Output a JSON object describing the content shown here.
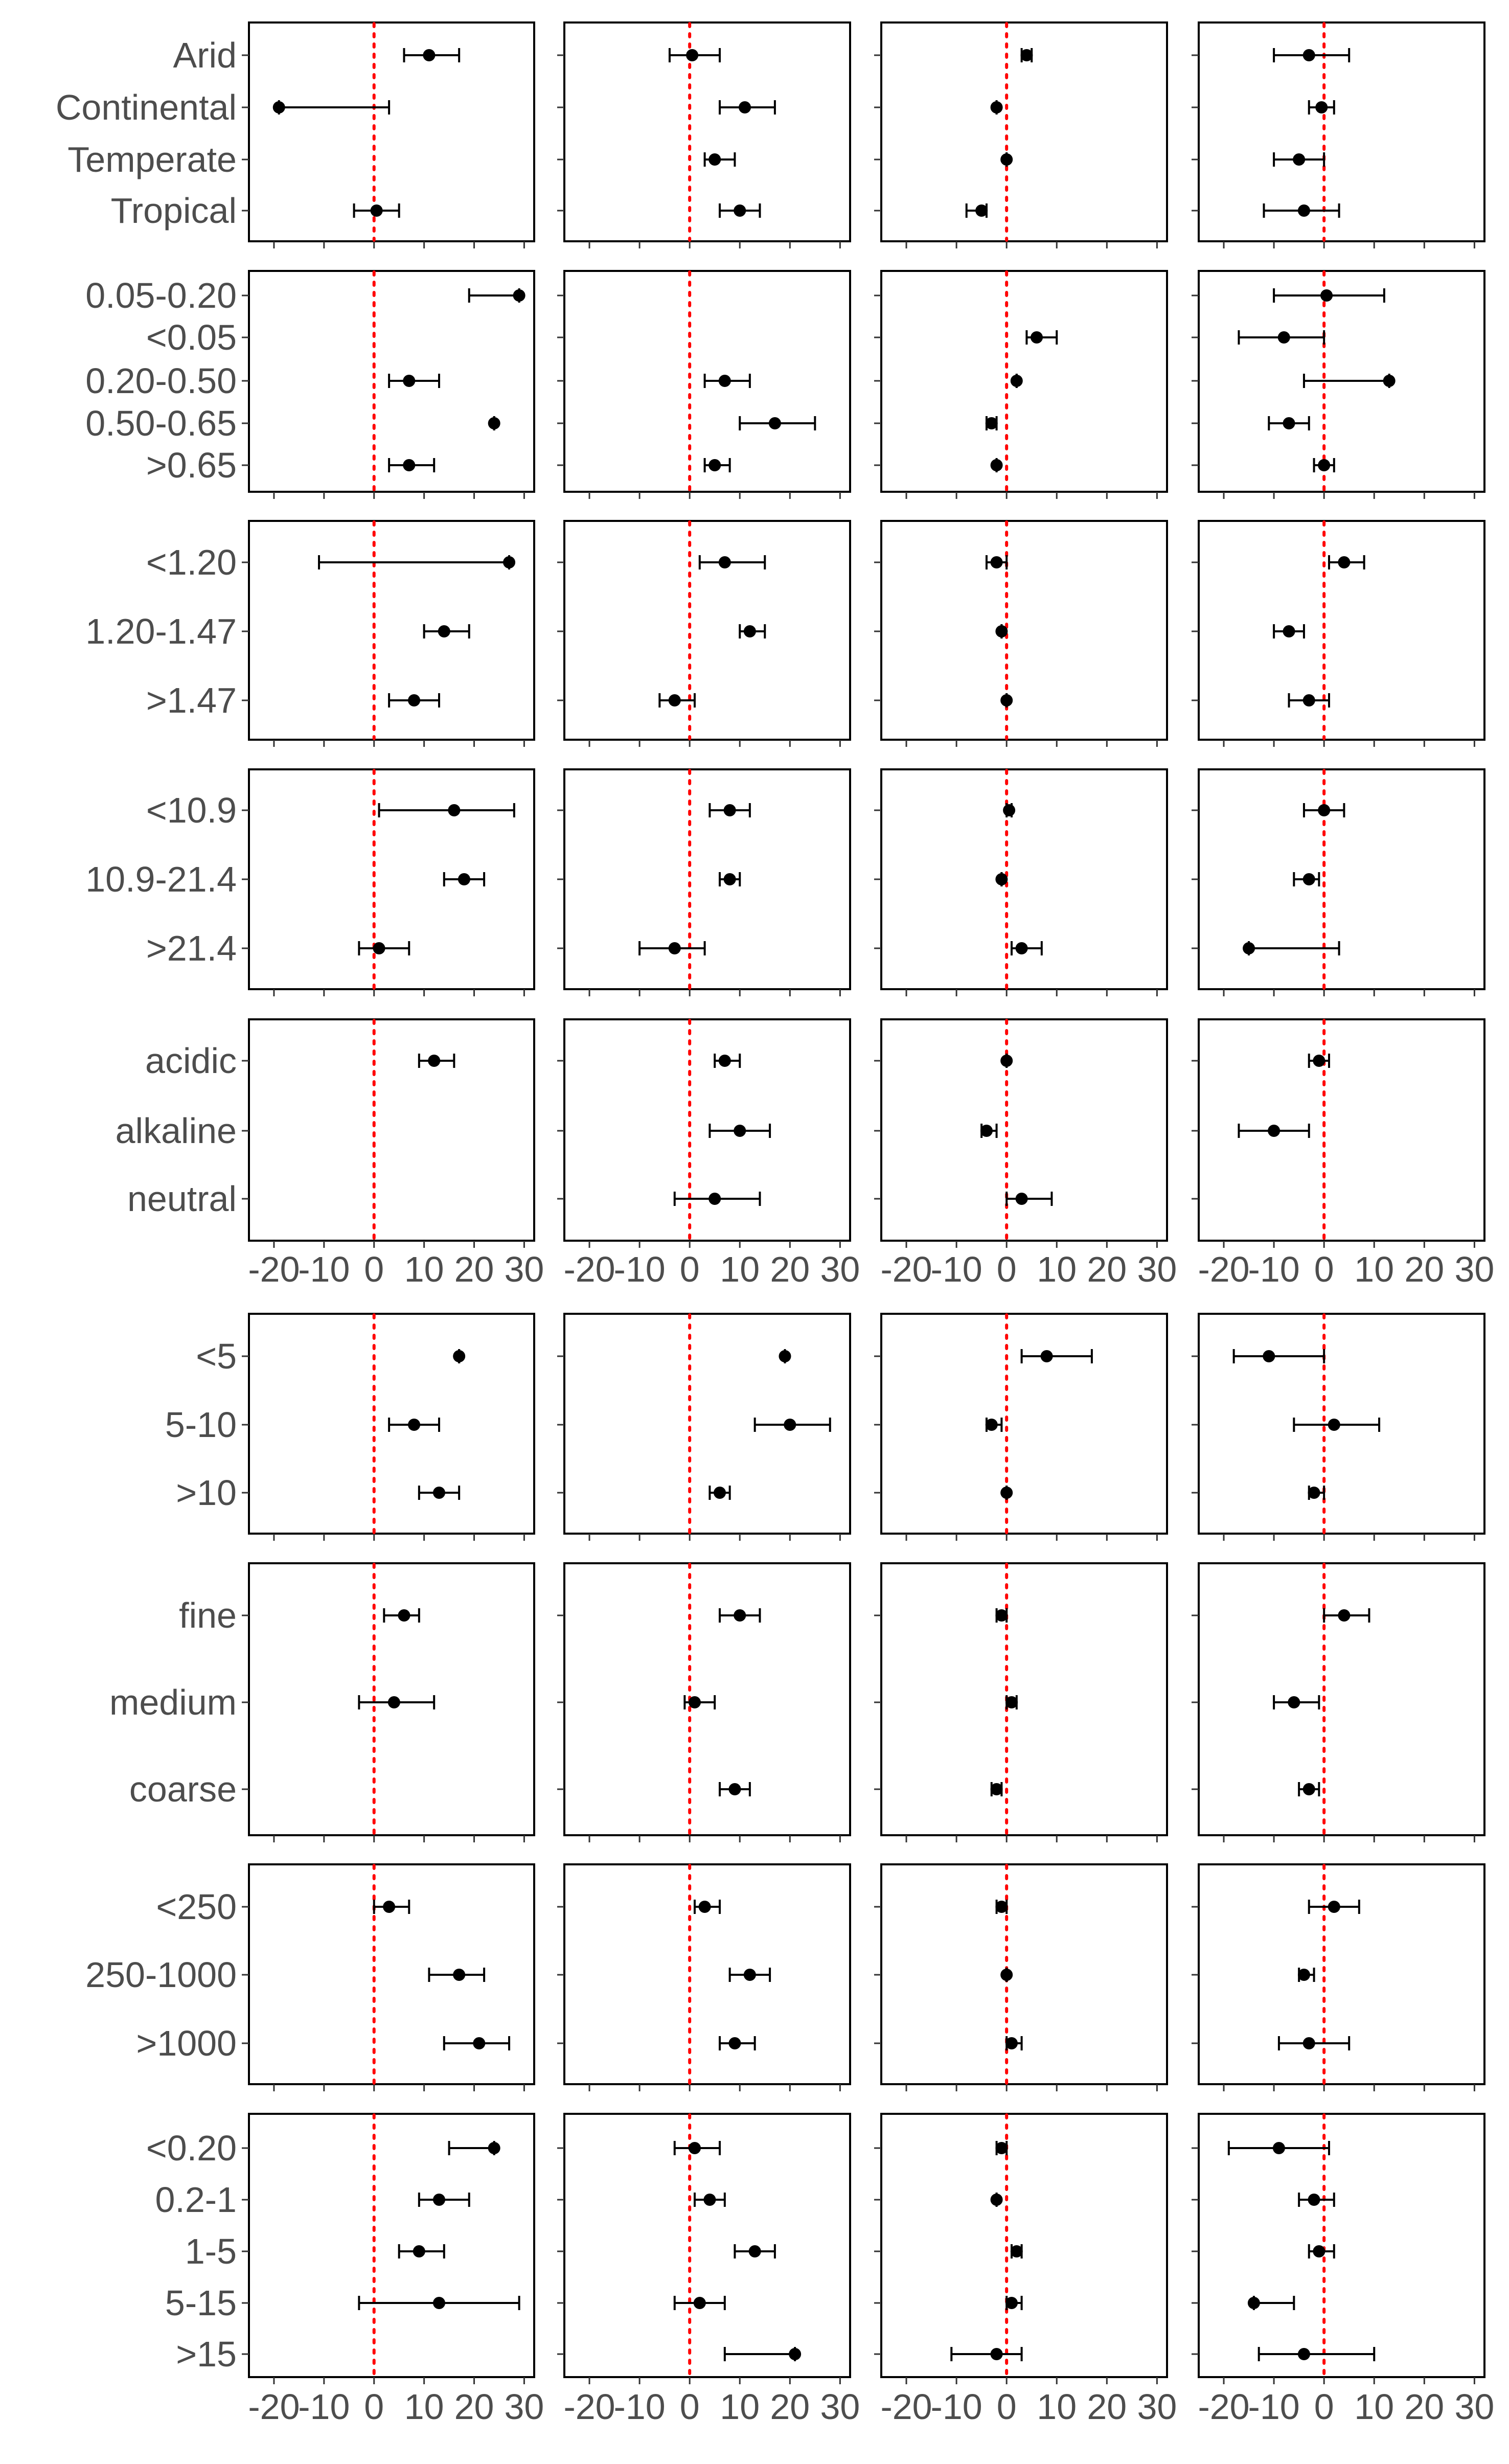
{
  "chart_data": {
    "type": "forest",
    "zero_line": {
      "x": 0,
      "color": "#ff0000",
      "style": "dotted"
    },
    "xlim": [
      -25,
      32
    ],
    "x_tick_labels": [
      "-20",
      "-10",
      "0",
      "10",
      "20",
      "30"
    ],
    "groups": [
      {
        "categories": [
          "Arid",
          "Continental",
          "Temperate",
          "Tropical"
        ],
        "panels": [
          [
            {
              "est": 11,
              "lo": 6,
              "hi": 17
            },
            {
              "est": -19,
              "lo": -19,
              "hi": 3
            },
            null,
            {
              "est": 0.5,
              "lo": -4,
              "hi": 5
            }
          ],
          [
            {
              "est": 0.5,
              "lo": -4,
              "hi": 6
            },
            {
              "est": 11,
              "lo": 6,
              "hi": 17
            },
            {
              "est": 5,
              "lo": 3,
              "hi": 9
            },
            {
              "est": 10,
              "lo": 6,
              "hi": 14
            }
          ],
          [
            {
              "est": 4,
              "lo": 3,
              "hi": 5
            },
            {
              "est": -2,
              "lo": -2,
              "hi": -2
            },
            {
              "est": 0,
              "lo": 0,
              "hi": 0
            },
            {
              "est": -5,
              "lo": -8,
              "hi": -4
            }
          ],
          [
            {
              "est": -3,
              "lo": -10,
              "hi": 5
            },
            {
              "est": -0.5,
              "lo": -3,
              "hi": 2
            },
            {
              "est": -5,
              "lo": -10,
              "hi": 0
            },
            {
              "est": -4,
              "lo": -12,
              "hi": 3
            }
          ]
        ]
      },
      {
        "categories": [
          "0.05-0.20",
          "<0.05",
          "0.20-0.50",
          "0.50-0.65",
          ">0.65"
        ],
        "panels": [
          [
            {
              "est": 29,
              "lo": 19,
              "hi": 29
            },
            null,
            {
              "est": 7,
              "lo": 3,
              "hi": 13
            },
            {
              "est": 24,
              "lo": 24,
              "hi": 24
            },
            {
              "est": 7,
              "lo": 3,
              "hi": 12
            }
          ],
          [
            null,
            null,
            {
              "est": 7,
              "lo": 3,
              "hi": 12
            },
            {
              "est": 17,
              "lo": 10,
              "hi": 25
            },
            {
              "est": 5,
              "lo": 3,
              "hi": 8
            }
          ],
          [
            null,
            {
              "est": 6,
              "lo": 4,
              "hi": 10
            },
            {
              "est": 2,
              "lo": 2,
              "hi": 2
            },
            {
              "est": -3,
              "lo": -4,
              "hi": -2
            },
            {
              "est": -2,
              "lo": -2,
              "hi": -2
            }
          ],
          [
            {
              "est": 0.5,
              "lo": -10,
              "hi": 12
            },
            {
              "est": -8,
              "lo": -17,
              "hi": 0
            },
            {
              "est": 13,
              "lo": -4,
              "hi": 13
            },
            {
              "est": -7,
              "lo": -11,
              "hi": -3
            },
            {
              "est": 0,
              "lo": -2,
              "hi": 2
            }
          ]
        ]
      },
      {
        "categories": [
          "<1.20",
          "1.20-1.47",
          ">1.47"
        ],
        "panels": [
          [
            {
              "est": 27,
              "lo": -11,
              "hi": 27
            },
            {
              "est": 14,
              "lo": 10,
              "hi": 19
            },
            {
              "est": 8,
              "lo": 3,
              "hi": 13
            }
          ],
          [
            {
              "est": 7,
              "lo": 2,
              "hi": 15
            },
            {
              "est": 12,
              "lo": 10,
              "hi": 15
            },
            {
              "est": -3,
              "lo": -6,
              "hi": 1
            }
          ],
          [
            {
              "est": -2,
              "lo": -4,
              "hi": 0
            },
            {
              "est": -1,
              "lo": -1,
              "hi": -1
            },
            {
              "est": 0,
              "lo": 0,
              "hi": 0
            }
          ],
          [
            {
              "est": 4,
              "lo": 1,
              "hi": 8
            },
            {
              "est": -7,
              "lo": -10,
              "hi": -4
            },
            {
              "est": -3,
              "lo": -7,
              "hi": 1
            }
          ]
        ]
      },
      {
        "categories": [
          "<10.9",
          "10.9-21.4",
          ">21.4"
        ],
        "panels": [
          [
            {
              "est": 16,
              "lo": 1,
              "hi": 28
            },
            {
              "est": 18,
              "lo": 14,
              "hi": 22
            },
            {
              "est": 1,
              "lo": -3,
              "hi": 7
            }
          ],
          [
            {
              "est": 8,
              "lo": 4,
              "hi": 12
            },
            {
              "est": 8,
              "lo": 6,
              "hi": 10
            },
            {
              "est": -3,
              "lo": -10,
              "hi": 3
            }
          ],
          [
            {
              "est": 0.5,
              "lo": 0,
              "hi": 1
            },
            {
              "est": -1,
              "lo": -1,
              "hi": -1
            },
            {
              "est": 3,
              "lo": 1,
              "hi": 7
            }
          ],
          [
            {
              "est": 0,
              "lo": -4,
              "hi": 4
            },
            {
              "est": -3,
              "lo": -6,
              "hi": -1
            },
            {
              "est": -15,
              "lo": -15,
              "hi": 3
            }
          ]
        ]
      },
      {
        "categories": [
          "acidic",
          "alkaline",
          "neutral"
        ],
        "panels": [
          [
            {
              "est": 12,
              "lo": 9,
              "hi": 16
            },
            null,
            null
          ],
          [
            {
              "est": 7,
              "lo": 5,
              "hi": 10
            },
            {
              "est": 10,
              "lo": 4,
              "hi": 16
            },
            {
              "est": 5,
              "lo": -3,
              "hi": 14
            }
          ],
          [
            {
              "est": 0,
              "lo": 0,
              "hi": 0
            },
            {
              "est": -4,
              "lo": -5,
              "hi": -2
            },
            {
              "est": 3,
              "lo": 0,
              "hi": 9
            }
          ],
          [
            {
              "est": -1,
              "lo": -3,
              "hi": 1
            },
            {
              "est": -10,
              "lo": -17,
              "hi": -3
            },
            null
          ]
        ]
      }
    ],
    "groups_lower": [
      {
        "categories": [
          "<5",
          "5-10",
          ">10"
        ],
        "panels": [
          [
            {
              "est": 17,
              "lo": 17,
              "hi": 17
            },
            {
              "est": 8,
              "lo": 3,
              "hi": 13
            },
            {
              "est": 13,
              "lo": 9,
              "hi": 17
            }
          ],
          [
            {
              "est": 19,
              "lo": 19,
              "hi": 19
            },
            {
              "est": 20,
              "lo": 13,
              "hi": 28
            },
            {
              "est": 6,
              "lo": 4,
              "hi": 8
            }
          ],
          [
            {
              "est": 8,
              "lo": 3,
              "hi": 17
            },
            {
              "est": -3,
              "lo": -4,
              "hi": -1
            },
            {
              "est": 0,
              "lo": 0,
              "hi": 0
            }
          ],
          [
            {
              "est": -11,
              "lo": -18,
              "hi": 0
            },
            {
              "est": 2,
              "lo": -6,
              "hi": 11
            },
            {
              "est": -2,
              "lo": -3,
              "hi": 0
            }
          ]
        ]
      },
      {
        "categories": [
          "fine",
          "medium",
          "coarse"
        ],
        "panels": [
          [
            {
              "est": 6,
              "lo": 2,
              "hi": 9
            },
            {
              "est": 4,
              "lo": -3,
              "hi": 12
            },
            null
          ],
          [
            {
              "est": 10,
              "lo": 6,
              "hi": 14
            },
            {
              "est": 1,
              "lo": -1,
              "hi": 5
            },
            {
              "est": 9,
              "lo": 6,
              "hi": 12
            }
          ],
          [
            {
              "est": -1,
              "lo": -2,
              "hi": 0
            },
            {
              "est": 1,
              "lo": 0,
              "hi": 2
            },
            {
              "est": -2,
              "lo": -3,
              "hi": -1
            }
          ],
          [
            {
              "est": 4,
              "lo": 0,
              "hi": 9
            },
            {
              "est": -6,
              "lo": -10,
              "hi": -1
            },
            {
              "est": -3,
              "lo": -5,
              "hi": -1
            }
          ]
        ]
      },
      {
        "categories": [
          "<250",
          "250-1000",
          ">1000"
        ],
        "panels": [
          [
            {
              "est": 3,
              "lo": 0,
              "hi": 7
            },
            {
              "est": 17,
              "lo": 11,
              "hi": 22
            },
            {
              "est": 21,
              "lo": 14,
              "hi": 27
            }
          ],
          [
            {
              "est": 3,
              "lo": 1,
              "hi": 6
            },
            {
              "est": 12,
              "lo": 8,
              "hi": 16
            },
            {
              "est": 9,
              "lo": 6,
              "hi": 13
            }
          ],
          [
            {
              "est": -1,
              "lo": -2,
              "hi": 0
            },
            {
              "est": 0,
              "lo": 0,
              "hi": 0
            },
            {
              "est": 1,
              "lo": 0,
              "hi": 3
            }
          ],
          [
            {
              "est": 2,
              "lo": -3,
              "hi": 7
            },
            {
              "est": -4,
              "lo": -5,
              "hi": -2
            },
            {
              "est": -3,
              "lo": -9,
              "hi": 5
            }
          ]
        ]
      },
      {
        "categories": [
          "<0.20",
          "0.2-1",
          "1-5",
          "5-15",
          ">15"
        ],
        "panels": [
          [
            {
              "est": 24,
              "lo": 15,
              "hi": 24
            },
            {
              "est": 13,
              "lo": 9,
              "hi": 19
            },
            {
              "est": 9,
              "lo": 5,
              "hi": 14
            },
            {
              "est": 13,
              "lo": -3,
              "hi": 29
            },
            null
          ],
          [
            {
              "est": 1,
              "lo": -3,
              "hi": 6
            },
            {
              "est": 4,
              "lo": 1,
              "hi": 7
            },
            {
              "est": 13,
              "lo": 9,
              "hi": 17
            },
            {
              "est": 2,
              "lo": -3,
              "hi": 7
            },
            {
              "est": 21,
              "lo": 7,
              "hi": 21
            }
          ],
          [
            {
              "est": -1,
              "lo": -2,
              "hi": 0
            },
            {
              "est": -2,
              "lo": -2,
              "hi": -2
            },
            {
              "est": 2,
              "lo": 1,
              "hi": 3
            },
            {
              "est": 1,
              "lo": 0,
              "hi": 3
            },
            {
              "est": -2,
              "lo": -11,
              "hi": 3
            }
          ],
          [
            {
              "est": -9,
              "lo": -19,
              "hi": 1
            },
            {
              "est": -2,
              "lo": -5,
              "hi": 2
            },
            {
              "est": -1,
              "lo": -3,
              "hi": 2
            },
            {
              "est": -14,
              "lo": -14,
              "hi": -6
            },
            {
              "est": -4,
              "lo": -13,
              "hi": 10
            }
          ]
        ]
      }
    ]
  }
}
